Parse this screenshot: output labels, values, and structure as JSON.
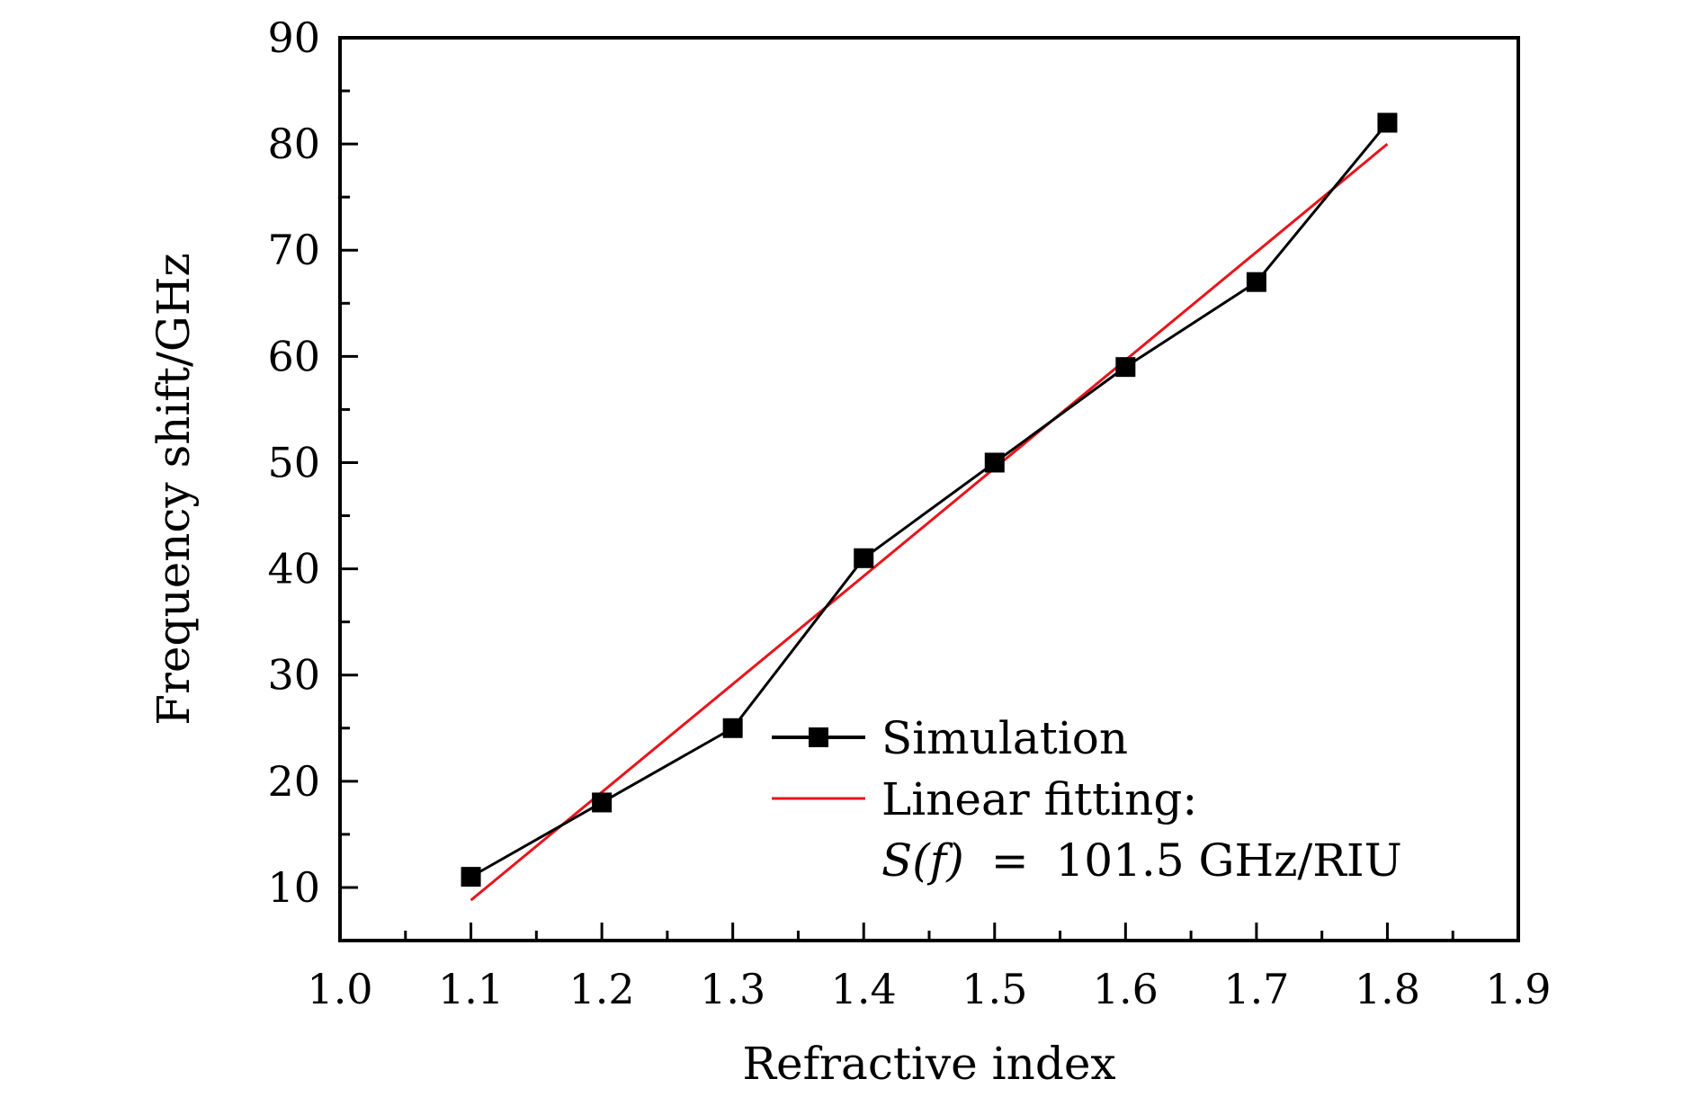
{
  "chart_data": {
    "type": "line",
    "title": "",
    "xlabel": "Refractive index",
    "ylabel": "Frequency shift/GHz",
    "xlim": [
      1.0,
      1.9
    ],
    "ylim": [
      5,
      90
    ],
    "xticks": [
      "1.0",
      "1.1",
      "1.2",
      "1.3",
      "1.4",
      "1.5",
      "1.6",
      "1.7",
      "1.8",
      "1.9"
    ],
    "yticks": [
      "10",
      "20",
      "30",
      "40",
      "50",
      "60",
      "70",
      "80",
      "90"
    ],
    "grid": false,
    "legend_position": "bottom-right",
    "series": [
      {
        "name": "Simulation",
        "color": "#000000",
        "marker": "square",
        "x": [
          1.1,
          1.2,
          1.3,
          1.4,
          1.5,
          1.6,
          1.7,
          1.8
        ],
        "y": [
          11.0,
          18.0,
          25.0,
          41.0,
          50.0,
          59.0,
          67.0,
          82.0
        ]
      },
      {
        "name": "Linear fitting:",
        "color": "#e8141b",
        "marker": "none",
        "x": [
          1.1,
          1.8
        ],
        "y": [
          8.8,
          80.0
        ]
      }
    ],
    "annotation": {
      "math_lhs": "S(f)",
      "equals": "=",
      "rhs": "101.5 GHz/RIU"
    }
  }
}
